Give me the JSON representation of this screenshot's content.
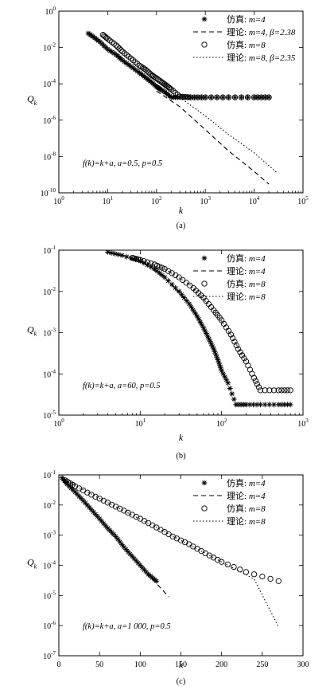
{
  "chart_data": [
    {
      "type": "scatter",
      "panel": "(a)",
      "caption": "(a)",
      "xlabel": "k",
      "ylabel": "Q_k",
      "xscale": "log",
      "yscale": "log",
      "xlim": [
        1,
        100000
      ],
      "ylim": [
        1e-10,
        1
      ],
      "x_ticks": [
        {
          "value": 1,
          "mant": "10",
          "exp": "0"
        },
        {
          "value": 10,
          "mant": "10",
          "exp": "1"
        },
        {
          "value": 100,
          "mant": "10",
          "exp": "2"
        },
        {
          "value": 1000,
          "mant": "10",
          "exp": "3"
        },
        {
          "value": 10000,
          "mant": "10",
          "exp": "4"
        },
        {
          "value": 100000,
          "mant": "10",
          "exp": "5"
        }
      ],
      "y_ticks": [
        {
          "value": 1,
          "mant": "10",
          "exp": "0"
        },
        {
          "value": 0.01,
          "mant": "10",
          "exp": "-2"
        },
        {
          "value": 0.0001,
          "mant": "10",
          "exp": "-4"
        },
        {
          "value": 1e-06,
          "mant": "10",
          "exp": "-6"
        },
        {
          "value": 1e-08,
          "mant": "10",
          "exp": "-8"
        },
        {
          "value": 1e-10,
          "mant": "10",
          "exp": "-10"
        }
      ],
      "annotation": "f(k)=k+a, a=0.5, p=0.5",
      "legend_position": "top-right",
      "series": [
        {
          "name": "仿真: m=4",
          "label_a": "仿真: ",
          "label_b": "m=4",
          "marker": "star",
          "x": [
            4,
            5,
            7,
            10,
            15,
            20,
            30,
            45,
            60,
            80,
            100,
            120,
            150,
            200,
            300,
            500,
            1000,
            3000,
            10000,
            20000
          ],
          "y": [
            0.06,
            0.04,
            0.02,
            0.008,
            0.004,
            0.002,
            0.0009,
            0.0004,
            0.00022,
            0.00012,
            7e-05,
            5e-05,
            3.5e-05,
            1.8e-05,
            1.8e-05,
            1.8e-05,
            1.8e-05,
            1.8e-05,
            1.8e-05,
            1.8e-05
          ]
        },
        {
          "name": "理论: m=4, β=2.38",
          "label_a": "理论: ",
          "label_b": "m=4, β=2.38",
          "line": "dashed",
          "x": [
            100,
            300,
            1000,
            3000,
            10000,
            20000
          ],
          "y": [
            4e-05,
            5.5e-06,
            3e-07,
            2e-08,
            1.5e-09,
            3e-10
          ]
        },
        {
          "name": "仿真: m=8",
          "label_a": "仿真: ",
          "label_b": "m=8",
          "marker": "circle",
          "x": [
            8,
            10,
            15,
            20,
            30,
            45,
            60,
            80,
            100,
            130,
            160,
            200,
            300,
            500,
            1000,
            3000,
            10000,
            20000
          ],
          "y": [
            0.05,
            0.03,
            0.013,
            0.006,
            0.0025,
            0.001,
            0.0006,
            0.0003,
            0.0002,
            0.00012,
            8e-05,
            5e-05,
            2e-05,
            1.8e-05,
            1.8e-05,
            1.8e-05,
            1.8e-05,
            1.8e-05
          ]
        },
        {
          "name": "理论: m=8, β=2.35",
          "label_a": "理论: ",
          "label_b": "m=8, β=2.35",
          "line": "dotted",
          "x": [
            300,
            1000,
            3000,
            10000,
            30000
          ],
          "y": [
            1.8e-05,
            1.7e-06,
            1.6e-07,
            1.6e-08,
            1.2e-09
          ]
        }
      ]
    },
    {
      "type": "scatter",
      "panel": "(b)",
      "caption": "(b)",
      "xlabel": "k",
      "ylabel": "Q_k",
      "xscale": "log",
      "yscale": "log",
      "xlim": [
        1,
        1000
      ],
      "ylim": [
        1e-05,
        0.1
      ],
      "x_ticks": [
        {
          "value": 1,
          "mant": "10",
          "exp": "0"
        },
        {
          "value": 10,
          "mant": "10",
          "exp": "1"
        },
        {
          "value": 100,
          "mant": "10",
          "exp": "2"
        },
        {
          "value": 1000,
          "mant": "10",
          "exp": "3"
        }
      ],
      "y_ticks": [
        {
          "value": 0.1,
          "mant": "10",
          "exp": "-1"
        },
        {
          "value": 0.01,
          "mant": "10",
          "exp": "-2"
        },
        {
          "value": 0.001,
          "mant": "10",
          "exp": "-3"
        },
        {
          "value": 0.0001,
          "mant": "10",
          "exp": "-4"
        },
        {
          "value": 1e-05,
          "mant": "10",
          "exp": "-5"
        }
      ],
      "annotation": "f(k)=k+a, a=60, p=0.5",
      "legend_position": "top-right",
      "series": [
        {
          "name": "仿真: m=4",
          "label_a": "仿真: ",
          "label_b": "m=4",
          "marker": "star",
          "x": [
            4,
            6,
            10,
            15,
            20,
            30,
            40,
            50,
            60,
            70,
            80,
            90,
            100,
            120,
            150,
            200,
            300,
            500,
            700
          ],
          "y": [
            0.09,
            0.075,
            0.055,
            0.035,
            0.022,
            0.01,
            0.005,
            0.0025,
            0.0013,
            0.0007,
            0.0004,
            0.00022,
            0.00012,
            6e-05,
            1.8e-05,
            1.8e-05,
            1.8e-05,
            1.8e-05,
            1.8e-05
          ]
        },
        {
          "name": "理论: m=4",
          "label_a": "理论: ",
          "label_b": "m=4",
          "line": "dashed",
          "x": [
            4,
            10,
            20,
            40,
            60,
            80,
            100
          ],
          "y": [
            0.09,
            0.055,
            0.022,
            0.005,
            0.0013,
            0.0004,
            0.00012
          ]
        },
        {
          "name": "仿真: m=8",
          "label_a": "仿真: ",
          "label_b": "m=8",
          "marker": "circle",
          "x": [
            8,
            10,
            15,
            20,
            30,
            45,
            60,
            80,
            100,
            130,
            160,
            200,
            250,
            300,
            500,
            700
          ],
          "y": [
            0.065,
            0.058,
            0.045,
            0.035,
            0.022,
            0.012,
            0.007,
            0.0035,
            0.002,
            0.0009,
            0.0004,
            0.0002,
            8e-05,
            4e-05,
            4e-05,
            4e-05
          ]
        },
        {
          "name": "理论: m=8",
          "label_a": "理论: ",
          "label_b": "m=8",
          "line": "dotted",
          "x": [
            8,
            20,
            40,
            80,
            130,
            200
          ],
          "y": [
            0.065,
            0.035,
            0.015,
            0.0035,
            0.0009,
            0.0002
          ]
        }
      ]
    },
    {
      "type": "scatter",
      "panel": "(c)",
      "caption": "(c)",
      "xlabel": "k",
      "ylabel": "Q_k",
      "xscale": "linear",
      "yscale": "log",
      "xlim": [
        0,
        300
      ],
      "ylim": [
        1e-07,
        0.1
      ],
      "x_ticks": [
        {
          "value": 0,
          "label": "0"
        },
        {
          "value": 50,
          "label": "50"
        },
        {
          "value": 100,
          "label": "100"
        },
        {
          "value": 150,
          "label": "150"
        },
        {
          "value": 200,
          "label": "200"
        },
        {
          "value": 250,
          "label": "250"
        },
        {
          "value": 300,
          "label": "300"
        }
      ],
      "y_ticks": [
        {
          "value": 0.1,
          "mant": "10",
          "exp": "-1"
        },
        {
          "value": 0.01,
          "mant": "10",
          "exp": "-2"
        },
        {
          "value": 0.001,
          "mant": "10",
          "exp": "-3"
        },
        {
          "value": 0.0001,
          "mant": "10",
          "exp": "-4"
        },
        {
          "value": 1e-05,
          "mant": "10",
          "exp": "-5"
        },
        {
          "value": 1e-06,
          "mant": "10",
          "exp": "-6"
        },
        {
          "value": 1e-07,
          "mant": "10",
          "exp": "-7"
        }
      ],
      "annotation": "f(k)=k+a, a=1 000, p=0.5",
      "legend_position": "top-right",
      "series": [
        {
          "name": "仿真: m=4",
          "label_a": "仿真: ",
          "label_b": "m=4",
          "marker": "star",
          "x": [
            4,
            10,
            20,
            30,
            40,
            50,
            60,
            70,
            80,
            90,
            100,
            110,
            120
          ],
          "y": [
            0.08,
            0.05,
            0.027,
            0.014,
            0.007,
            0.0035,
            0.0017,
            0.0009,
            0.0004,
            0.0002,
            0.0001,
            5e-05,
            3e-05
          ]
        },
        {
          "name": "理论: m=4",
          "label_a": "理论: ",
          "label_b": "m=4",
          "line": "dashed",
          "x": [
            4,
            30,
            60,
            90,
            120,
            135
          ],
          "y": [
            0.08,
            0.014,
            0.0017,
            0.0002,
            2.5e-05,
            9e-06
          ]
        },
        {
          "name": "仿真: m=8",
          "label_a": "仿真: ",
          "label_b": "m=8",
          "marker": "circle",
          "x": [
            8,
            20,
            40,
            60,
            80,
            100,
            120,
            140,
            160,
            180,
            200,
            230,
            270
          ],
          "y": [
            0.065,
            0.042,
            0.022,
            0.012,
            0.0065,
            0.0035,
            0.0018,
            0.0009,
            0.0005,
            0.00025,
            0.00013,
            6e-05,
            3e-05
          ]
        },
        {
          "name": "理论: m=8",
          "label_a": "理论: ",
          "label_b": "m=8",
          "line": "dotted",
          "x": [
            8,
            60,
            120,
            180,
            240,
            270
          ],
          "y": [
            0.065,
            0.012,
            0.0018,
            0.00025,
            3.5e-05,
            9e-07
          ]
        }
      ]
    }
  ]
}
